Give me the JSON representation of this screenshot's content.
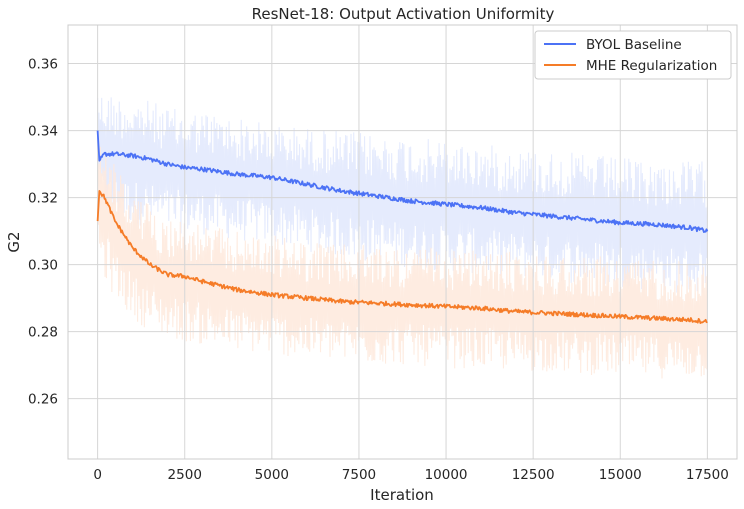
{
  "chart_data": {
    "type": "line",
    "title": "ResNet-18: Output Activation Uniformity",
    "xlabel": "Iteration",
    "ylabel": "G2",
    "xlim": [
      -850,
      18350
    ],
    "ylim": [
      0.242,
      0.3715
    ],
    "x_ticks": [
      0,
      2500,
      5000,
      7500,
      10000,
      12500,
      15000,
      17500
    ],
    "y_ticks": [
      0.26,
      0.28,
      0.3,
      0.32,
      0.34,
      0.36
    ],
    "y_tick_labels": [
      "0.26",
      "0.28",
      "0.30",
      "0.32",
      "0.34",
      "0.36"
    ],
    "grid": true,
    "legend_position": "top-right",
    "x_range": [
      0,
      17500
    ],
    "series": [
      {
        "name": "BYOL Baseline",
        "color": "#4c72f5",
        "raw_color": "#e2e9fd",
        "smoothed": {
          "x": [
            0,
            50,
            200,
            500,
            1000,
            1500,
            2000,
            2500,
            3000,
            4000,
            5000,
            6000,
            7000,
            8000,
            9000,
            10000,
            11000,
            12000,
            13000,
            14000,
            15000,
            16000,
            17000,
            17500
          ],
          "y": [
            0.34,
            0.331,
            0.333,
            0.333,
            0.3325,
            0.3315,
            0.33,
            0.329,
            0.3285,
            0.327,
            0.326,
            0.324,
            0.322,
            0.3205,
            0.319,
            0.318,
            0.317,
            0.3155,
            0.3145,
            0.3135,
            0.3125,
            0.312,
            0.311,
            0.31
          ]
        },
        "raw_band_upper": [
          0.358,
          0.352,
          0.352,
          0.351,
          0.35,
          0.349,
          0.347,
          0.346,
          0.346,
          0.344,
          0.342,
          0.341,
          0.34,
          0.339,
          0.338,
          0.337,
          0.336,
          0.335,
          0.334,
          0.333,
          0.332,
          0.331,
          0.331,
          0.331
        ],
        "raw_band_lower": [
          0.322,
          0.316,
          0.314,
          0.313,
          0.312,
          0.311,
          0.31,
          0.309,
          0.309,
          0.307,
          0.306,
          0.304,
          0.302,
          0.3,
          0.299,
          0.298,
          0.297,
          0.296,
          0.295,
          0.294,
          0.293,
          0.292,
          0.291,
          0.291
        ]
      },
      {
        "name": "MHE Regularization",
        "color": "#f57c28",
        "raw_color": "#feeade",
        "smoothed": {
          "x": [
            0,
            50,
            200,
            500,
            1000,
            1500,
            2000,
            2500,
            3000,
            4000,
            5000,
            6000,
            7000,
            8000,
            9000,
            10000,
            11000,
            12000,
            13000,
            14000,
            15000,
            16000,
            17000,
            17500
          ],
          "y": [
            0.313,
            0.322,
            0.32,
            0.313,
            0.305,
            0.3,
            0.297,
            0.2965,
            0.295,
            0.2925,
            0.291,
            0.29,
            0.289,
            0.2885,
            0.288,
            0.2875,
            0.287,
            0.286,
            0.2855,
            0.285,
            0.2845,
            0.284,
            0.2835,
            0.283
          ]
        },
        "raw_band_upper": [
          0.334,
          0.34,
          0.338,
          0.33,
          0.322,
          0.318,
          0.315,
          0.314,
          0.312,
          0.31,
          0.309,
          0.307,
          0.306,
          0.306,
          0.305,
          0.305,
          0.304,
          0.304,
          0.303,
          0.303,
          0.302,
          0.302,
          0.301,
          0.301
        ],
        "raw_band_lower": [
          0.298,
          0.3,
          0.295,
          0.29,
          0.284,
          0.28,
          0.278,
          0.277,
          0.276,
          0.274,
          0.273,
          0.272,
          0.271,
          0.27,
          0.27,
          0.269,
          0.269,
          0.268,
          0.268,
          0.267,
          0.267,
          0.266,
          0.266,
          0.266
        ]
      }
    ]
  }
}
